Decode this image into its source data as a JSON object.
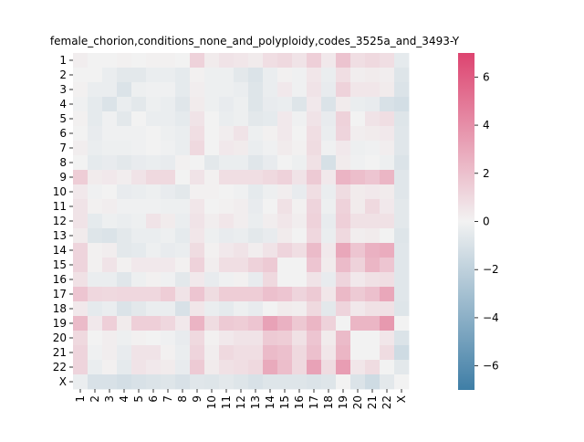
{
  "chart_data": {
    "type": "heatmap",
    "title": "female_chorion,conditions_none_and_polyploidy,codes_3525a_and_3493-Y",
    "xlabel": "",
    "ylabel": "",
    "rows": [
      "1",
      "2",
      "3",
      "4",
      "5",
      "6",
      "7",
      "8",
      "9",
      "10",
      "11",
      "12",
      "13",
      "14",
      "15",
      "16",
      "17",
      "18",
      "19",
      "20",
      "21",
      "22",
      "X"
    ],
    "cols": [
      "1",
      "2",
      "3",
      "4",
      "5",
      "6",
      "7",
      "8",
      "9",
      "10",
      "11",
      "12",
      "13",
      "14",
      "15",
      "16",
      "17",
      "18",
      "19",
      "20",
      "21",
      "22",
      "X"
    ],
    "colorbar": {
      "min": -7,
      "max": 7,
      "ticks": [
        -6,
        -4,
        -2,
        0,
        2,
        4,
        6
      ],
      "low_color": "#3f7ea6",
      "mid_color": "#f2f2f2",
      "high_color": "#dd4470"
    },
    "values": [
      [
        0.2,
        0.0,
        0.0,
        0.1,
        0.0,
        0.1,
        0.1,
        0.0,
        1.3,
        0.3,
        0.6,
        0.5,
        0.3,
        0.8,
        1.0,
        0.6,
        1.4,
        0.4,
        1.9,
        0.8,
        1.0,
        0.8,
        -0.5
      ],
      [
        0.0,
        0.0,
        -0.3,
        -0.6,
        -0.6,
        -0.3,
        -0.3,
        -0.5,
        0.1,
        -0.2,
        -0.2,
        -0.6,
        -0.9,
        -0.3,
        0.1,
        -0.1,
        0.5,
        -0.3,
        0.8,
        0.2,
        0.3,
        0.2,
        -0.8
      ],
      [
        0.1,
        -0.3,
        -0.3,
        -0.9,
        -0.2,
        -0.1,
        -0.1,
        -0.5,
        0.2,
        -0.2,
        -0.2,
        -0.3,
        -0.8,
        -0.3,
        0.4,
        -0.1,
        0.6,
        -0.4,
        1.3,
        0.5,
        0.5,
        0.3,
        -0.9
      ],
      [
        -0.1,
        -0.5,
        -0.9,
        -0.3,
        -0.6,
        -0.2,
        -0.3,
        -0.7,
        0.3,
        -0.2,
        -0.4,
        -0.2,
        -0.8,
        -0.4,
        -0.3,
        -0.8,
        0.4,
        -0.9,
        0.3,
        -0.3,
        -0.4,
        -1.0,
        -1.2
      ],
      [
        0.1,
        -0.5,
        -0.1,
        -0.6,
        0.0,
        -0.3,
        -0.3,
        -0.5,
        0.6,
        0.0,
        -0.3,
        -0.2,
        -0.6,
        -0.5,
        0.4,
        -0.1,
        0.6,
        -0.4,
        1.3,
        0.0,
        0.6,
        0.8,
        -0.8
      ],
      [
        0.0,
        -0.4,
        -0.1,
        -0.1,
        -0.1,
        0.0,
        -0.2,
        -0.3,
        0.8,
        0.0,
        0.2,
        0.6,
        -0.2,
        0.1,
        0.4,
        0.0,
        0.8,
        -0.3,
        1.2,
        0.2,
        0.3,
        0.4,
        -0.7
      ],
      [
        0.2,
        -0.3,
        -0.2,
        -0.2,
        -0.1,
        0.0,
        -0.1,
        -0.3,
        1.0,
        0.0,
        0.4,
        0.3,
        -0.3,
        -0.1,
        0.3,
        0.1,
        0.9,
        -0.1,
        0.4,
        -0.2,
        -0.1,
        0.2,
        -0.7
      ],
      [
        0.0,
        -0.5,
        -0.4,
        -0.6,
        -0.4,
        -0.3,
        -0.4,
        0.1,
        0.0,
        -0.6,
        -0.3,
        -0.3,
        -0.7,
        -0.4,
        0.0,
        -0.2,
        0.7,
        -1.1,
        0.3,
        -0.1,
        0.0,
        -0.2,
        -0.9
      ],
      [
        1.5,
        0.3,
        0.4,
        0.2,
        0.6,
        1.0,
        1.0,
        0.0,
        0.6,
        0.1,
        0.8,
        0.8,
        0.8,
        1.0,
        1.3,
        0.6,
        1.6,
        0.4,
        2.5,
        2.1,
        1.8,
        2.4,
        -0.7
      ],
      [
        0.4,
        -0.1,
        0.0,
        -0.4,
        -0.3,
        -0.2,
        -0.4,
        -0.6,
        0.1,
        0.1,
        0.0,
        -0.1,
        -0.5,
        -0.2,
        0.2,
        -0.4,
        0.8,
        -0.3,
        0.9,
        0.3,
        0.4,
        0.3,
        -0.7
      ],
      [
        0.6,
        0.1,
        0.2,
        -0.1,
        -0.1,
        -0.1,
        -0.2,
        -0.2,
        0.5,
        0.0,
        0.1,
        0.2,
        -0.4,
        0.0,
        0.7,
        0.1,
        1.2,
        -0.2,
        1.3,
        0.3,
        1.0,
        0.4,
        -0.6
      ],
      [
        0.6,
        -0.5,
        -0.2,
        -0.3,
        -0.2,
        0.6,
        0.3,
        -0.3,
        0.6,
        0.2,
        0.5,
        0.2,
        -0.3,
        0.2,
        0.5,
        0.2,
        1.3,
        -0.4,
        1.4,
        0.7,
        0.7,
        0.7,
        -0.6
      ],
      [
        0.3,
        -0.8,
        -0.9,
        -0.6,
        -0.3,
        -0.3,
        -0.2,
        -0.5,
        0.5,
        -0.2,
        -0.4,
        -0.3,
        -0.6,
        -0.4,
        0.3,
        0.0,
        1.1,
        -0.3,
        1.0,
        0.2,
        0.3,
        0.0,
        -0.8
      ],
      [
        1.2,
        0.1,
        0.2,
        -0.6,
        -0.5,
        -0.2,
        -0.4,
        -0.3,
        0.9,
        0.1,
        0.4,
        0.6,
        0.2,
        0.6,
        1.2,
        0.8,
        2.2,
        0.4,
        3.0,
        1.8,
        2.6,
        2.8,
        -0.7
      ],
      [
        1.2,
        0.1,
        0.6,
        0.1,
        0.4,
        0.4,
        0.4,
        0.1,
        1.3,
        0.2,
        0.8,
        0.8,
        1.3,
        1.6,
        0.0,
        0.0,
        1.8,
        0.3,
        2.2,
        1.3,
        2.4,
        1.8,
        -0.7
      ],
      [
        0.7,
        -0.3,
        -0.3,
        -0.7,
        -0.2,
        0.1,
        -0.1,
        -0.6,
        0.4,
        -0.4,
        -0.1,
        0.1,
        -0.4,
        1.0,
        0.0,
        0.0,
        0.6,
        -0.4,
        1.2,
        0.4,
        0.7,
        0.8,
        -0.7
      ],
      [
        1.8,
        1.1,
        1.0,
        1.1,
        1.1,
        1.1,
        1.5,
        0.6,
        1.8,
        0.9,
        1.5,
        1.5,
        1.5,
        2.0,
        1.8,
        1.2,
        1.6,
        0.5,
        2.3,
        1.6,
        2.0,
        3.0,
        -0.7
      ],
      [
        0.4,
        -0.5,
        -0.3,
        -0.9,
        -0.6,
        -0.3,
        -0.3,
        -1.0,
        0.5,
        -0.3,
        -0.5,
        -0.2,
        -0.4,
        0.0,
        0.3,
        0.2,
        1.0,
        -0.6,
        1.2,
        0.4,
        0.7,
        0.7,
        -0.8
      ],
      [
        2.2,
        0.4,
        1.4,
        0.3,
        1.4,
        1.4,
        1.1,
        0.4,
        2.5,
        0.9,
        1.6,
        1.5,
        1.8,
        3.2,
        2.6,
        1.7,
        2.4,
        1.3,
        0.0,
        2.4,
        2.4,
        3.6,
        0.0
      ],
      [
        1.0,
        0.0,
        0.2,
        -0.2,
        0.1,
        0.0,
        -0.1,
        -0.4,
        1.0,
        0.1,
        0.4,
        0.6,
        0.6,
        1.6,
        1.5,
        0.7,
        1.8,
        0.3,
        2.2,
        0.0,
        0.0,
        0.5,
        -0.9
      ],
      [
        1.2,
        -0.1,
        0.2,
        -0.4,
        0.6,
        0.6,
        0.1,
        -0.3,
        1.2,
        0.2,
        1.0,
        0.8,
        0.8,
        2.2,
        2.0,
        1.0,
        2.0,
        0.5,
        2.4,
        0.0,
        0.0,
        0.9,
        -1.4
      ],
      [
        1.2,
        -0.3,
        0.1,
        -0.5,
        0.6,
        0.4,
        0.3,
        -0.4,
        1.6,
        0.3,
        0.7,
        0.8,
        1.0,
        2.9,
        2.1,
        1.0,
        3.2,
        0.9,
        3.4,
        0.5,
        0.9,
        0.0,
        -0.6
      ],
      [
        -0.3,
        -1.0,
        -1.0,
        -1.2,
        -1.0,
        -0.9,
        -0.8,
        -1.0,
        -0.7,
        -0.8,
        -0.6,
        -0.8,
        -1.0,
        -0.8,
        -0.8,
        -0.8,
        -0.9,
        -0.8,
        0.0,
        -0.9,
        -1.4,
        -0.6,
        0.0
      ]
    ]
  }
}
